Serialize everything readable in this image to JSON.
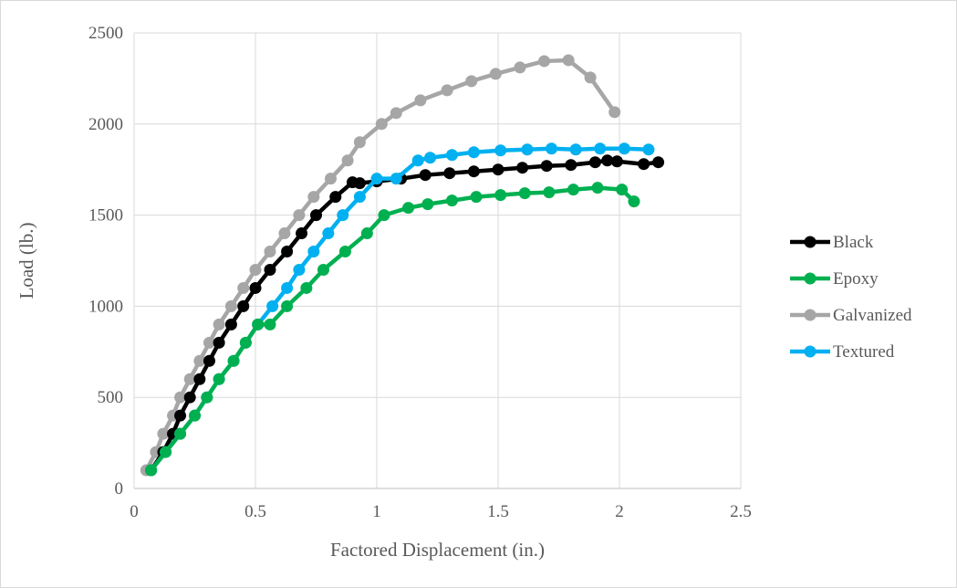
{
  "chart_data": {
    "type": "line",
    "title": "",
    "xlabel": "Factored Displacement (in.)",
    "ylabel": "Load (lb.)",
    "xlim": [
      0,
      2.5
    ],
    "ylim": [
      0,
      2500
    ],
    "x_ticks": [
      0,
      0.5,
      1,
      1.5,
      2,
      2.5
    ],
    "x_tick_labels": [
      "0",
      "0.5",
      "1",
      "1.5",
      "2",
      "2.5"
    ],
    "y_ticks": [
      0,
      500,
      1000,
      1500,
      2000,
      2500
    ],
    "y_tick_labels": [
      "0",
      "500",
      "1000",
      "1500",
      "2000",
      "2500"
    ],
    "grid": true,
    "legend_position": "right",
    "series": [
      {
        "name": "Black",
        "color": "#000000",
        "x": [
          0.07,
          0.12,
          0.16,
          0.19,
          0.23,
          0.27,
          0.31,
          0.35,
          0.4,
          0.45,
          0.5,
          0.56,
          0.63,
          0.69,
          0.75,
          0.83,
          0.9,
          0.93,
          1.0,
          1.1,
          1.2,
          1.3,
          1.4,
          1.5,
          1.6,
          1.7,
          1.8,
          1.9,
          1.95,
          1.99,
          2.1,
          2.16
        ],
        "y": [
          100,
          200,
          300,
          400,
          500,
          600,
          700,
          800,
          900,
          1000,
          1100,
          1200,
          1300,
          1400,
          1500,
          1600,
          1680,
          1675,
          1685,
          1700,
          1720,
          1730,
          1740,
          1750,
          1760,
          1770,
          1775,
          1790,
          1800,
          1795,
          1780,
          1790
        ]
      },
      {
        "name": "Epoxy",
        "color": "#00b050",
        "x": [
          0.07,
          0.13,
          0.19,
          0.25,
          0.3,
          0.35,
          0.41,
          0.46,
          0.51,
          0.56,
          0.63,
          0.71,
          0.78,
          0.87,
          0.96,
          1.03,
          1.13,
          1.21,
          1.31,
          1.41,
          1.51,
          1.61,
          1.71,
          1.81,
          1.91,
          2.01,
          2.06
        ],
        "y": [
          100,
          200,
          300,
          400,
          500,
          600,
          700,
          800,
          900,
          900,
          1000,
          1100,
          1200,
          1300,
          1400,
          1500,
          1540,
          1560,
          1580,
          1600,
          1610,
          1620,
          1625,
          1640,
          1650,
          1640,
          1575
        ]
      },
      {
        "name": "Galvanized",
        "color": "#a6a6a6",
        "x": [
          0.05,
          0.09,
          0.12,
          0.16,
          0.19,
          0.23,
          0.27,
          0.31,
          0.35,
          0.4,
          0.45,
          0.5,
          0.56,
          0.62,
          0.68,
          0.74,
          0.81,
          0.88,
          0.93,
          1.02,
          1.08,
          1.18,
          1.29,
          1.39,
          1.49,
          1.59,
          1.69,
          1.79,
          1.88,
          1.98
        ],
        "y": [
          100,
          200,
          300,
          400,
          500,
          600,
          700,
          800,
          900,
          1000,
          1100,
          1200,
          1300,
          1400,
          1500,
          1600,
          1700,
          1800,
          1900,
          2000,
          2060,
          2130,
          2185,
          2235,
          2275,
          2310,
          2345,
          2350,
          2255,
          2065
        ]
      },
      {
        "name": "Textured",
        "color": "#00b0f0",
        "x": [
          0.07,
          0.13,
          0.19,
          0.25,
          0.3,
          0.35,
          0.41,
          0.46,
          0.51,
          0.57,
          0.63,
          0.68,
          0.74,
          0.8,
          0.86,
          0.93,
          1.0,
          1.08,
          1.17,
          1.22,
          1.31,
          1.4,
          1.51,
          1.62,
          1.72,
          1.82,
          1.92,
          2.02,
          2.12
        ],
        "y": [
          100,
          200,
          300,
          400,
          500,
          600,
          700,
          800,
          900,
          1000,
          1100,
          1200,
          1300,
          1400,
          1500,
          1600,
          1700,
          1700,
          1800,
          1815,
          1830,
          1845,
          1855,
          1860,
          1865,
          1860,
          1865,
          1865,
          1860
        ]
      }
    ]
  }
}
